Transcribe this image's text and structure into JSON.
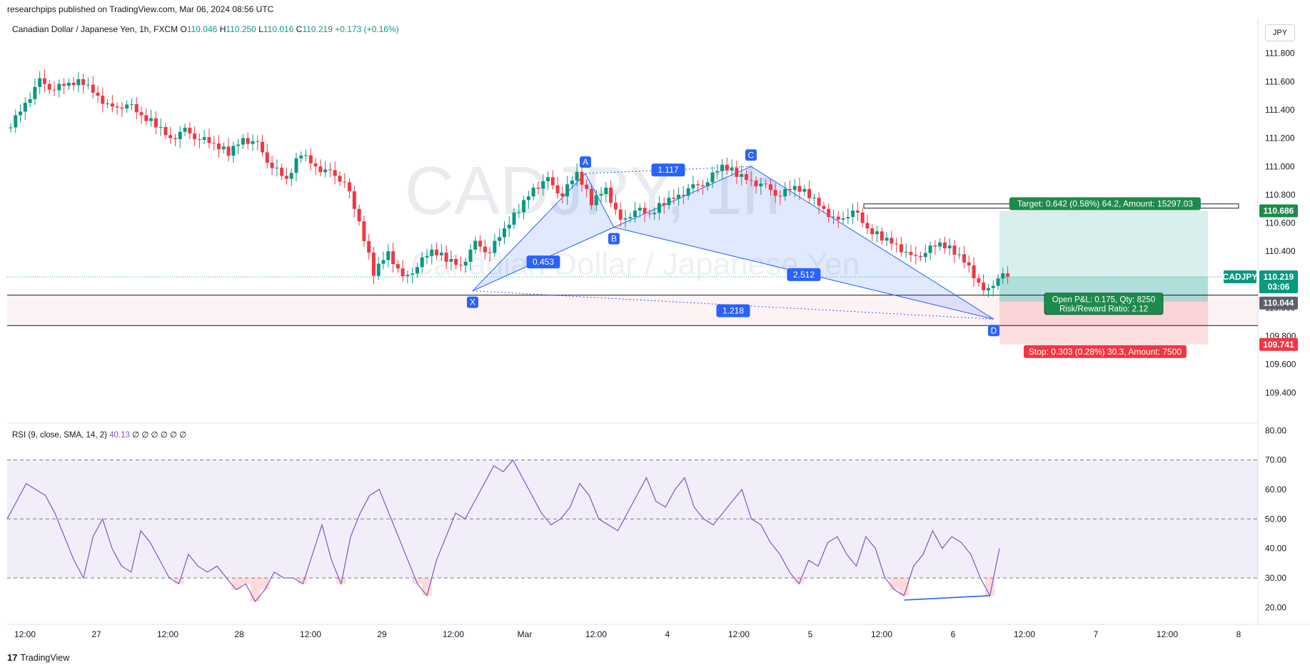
{
  "publisher": "researchpips published on TradingView.com, Mar 06, 2024 08:56 UTC",
  "legend": {
    "symbol": "Canadian Dollar / Japanese Yen, 1h, FXCM",
    "o_label": "O",
    "o": "110.046",
    "h_label": "H",
    "h": "110.250",
    "l_label": "L",
    "l": "110.016",
    "c_label": "C",
    "c": "110.219",
    "change": "+0.173 (+0.16%)"
  },
  "currency_button": "JPY",
  "watermark": {
    "symbol": "CADJPY, 1h",
    "name": "Canadian Dollar / Japanese Yen"
  },
  "footer": {
    "logo": "17",
    "brand": "TradingView"
  },
  "colors": {
    "up": "#089981",
    "down": "#f23645",
    "rsi": "#7e57c2",
    "pattern": "#2962ff",
    "target": "#26a69a",
    "stop": "#f23645"
  },
  "chart_data": [
    {
      "type": "candlestick",
      "symbol": "CADJPY",
      "timeframe": "1h",
      "ylim": [
        109.2,
        111.95
      ],
      "y_ticks": [
        "111.800",
        "111.600",
        "111.400",
        "111.200",
        "111.000",
        "110.800",
        "110.600",
        "110.400",
        "110.200",
        "110.000",
        "109.800",
        "109.600",
        "109.400"
      ],
      "x_ticks": [
        "12:00",
        "27",
        "12:00",
        "28",
        "12:00",
        "29",
        "12:00",
        "Mar",
        "12:00",
        "4",
        "12:00",
        "5",
        "12:00",
        "6",
        "12:00",
        "7",
        "12:00",
        "8"
      ],
      "series_close_path": [
        111.3,
        111.45,
        111.6,
        111.55,
        111.58,
        111.6,
        111.5,
        111.4,
        111.45,
        111.35,
        111.3,
        111.2,
        111.25,
        111.2,
        111.15,
        111.1,
        111.2,
        111.15,
        111.0,
        110.9,
        111.1,
        111.0,
        110.95,
        110.9,
        110.6,
        110.25,
        110.4,
        110.2,
        110.3,
        110.4,
        110.35,
        110.3,
        110.45,
        110.4,
        110.55,
        110.7,
        110.85,
        110.9,
        110.8,
        110.95,
        110.75,
        110.85,
        110.6,
        110.7,
        110.65,
        110.75,
        110.8,
        110.85,
        110.9,
        111.0,
        110.95,
        110.9,
        110.85,
        110.8,
        110.85,
        110.8,
        110.7,
        110.6,
        110.7,
        110.55,
        110.5,
        110.45,
        110.35,
        110.4,
        110.45,
        110.4,
        110.3,
        110.1,
        110.22
      ],
      "annotations": {
        "pattern_points": [
          {
            "label": "X",
            "price": 110.12
          },
          {
            "label": "A",
            "price": 110.95
          },
          {
            "label": "B",
            "price": 110.57
          },
          {
            "label": "C",
            "price": 111.0
          },
          {
            "label": "D",
            "price": 109.92
          }
        ],
        "ratios": [
          "0.453",
          "1.117",
          "2.512",
          "1.218"
        ],
        "target_label": "Target: 0.642 (0.58%) 64.2, Amount: 15297.03",
        "stop_label": "Stop: 0.303 (0.28%) 30.3, Amount: 7500",
        "pnl_label": "Open P&L: 0.175, Qty: 8250",
        "rr_label": "Risk/Reward Ratio: 2.12",
        "entry_price": 110.044,
        "target_price": 110.686,
        "stop_price": 109.741,
        "last_price": 110.219,
        "support_band": [
          109.875,
          110.09
        ],
        "resistance_level": 110.72
      },
      "price_badges": {
        "target": "110.686",
        "symbol": "CADJPY",
        "last": "110.219",
        "countdown": "03:06",
        "entry": "110.044",
        "stop": "109.741"
      }
    },
    {
      "type": "line",
      "name": "RSI",
      "legend": "RSI (9, close, SMA, 14, 2)",
      "legend_value": "40.13",
      "legend_extra": "∅ ∅ ∅ ∅ ∅ ∅",
      "ylim": [
        15,
        82
      ],
      "y_ticks": [
        "80.00",
        "70.00",
        "60.00",
        "50.00",
        "40.00",
        "30.00",
        "20.00"
      ],
      "bands": [
        30,
        50,
        70
      ],
      "values": [
        50,
        56,
        62,
        60,
        58,
        52,
        44,
        36,
        30,
        44,
        50,
        40,
        34,
        32,
        46,
        42,
        36,
        30,
        28,
        38,
        34,
        32,
        34,
        30,
        26,
        28,
        22,
        26,
        32,
        30,
        30,
        28,
        38,
        48,
        36,
        28,
        44,
        52,
        58,
        60,
        52,
        44,
        36,
        28,
        24,
        36,
        44,
        52,
        50,
        56,
        62,
        68,
        66,
        70,
        64,
        58,
        52,
        48,
        50,
        54,
        62,
        58,
        50,
        48,
        46,
        52,
        58,
        64,
        56,
        54,
        60,
        64,
        54,
        50,
        48,
        52,
        56,
        60,
        50,
        48,
        42,
        38,
        32,
        28,
        36,
        34,
        42,
        44,
        38,
        34,
        44,
        40,
        30,
        26,
        24,
        34,
        38,
        46,
        40,
        44,
        42,
        38,
        30,
        24,
        40
      ]
    }
  ]
}
